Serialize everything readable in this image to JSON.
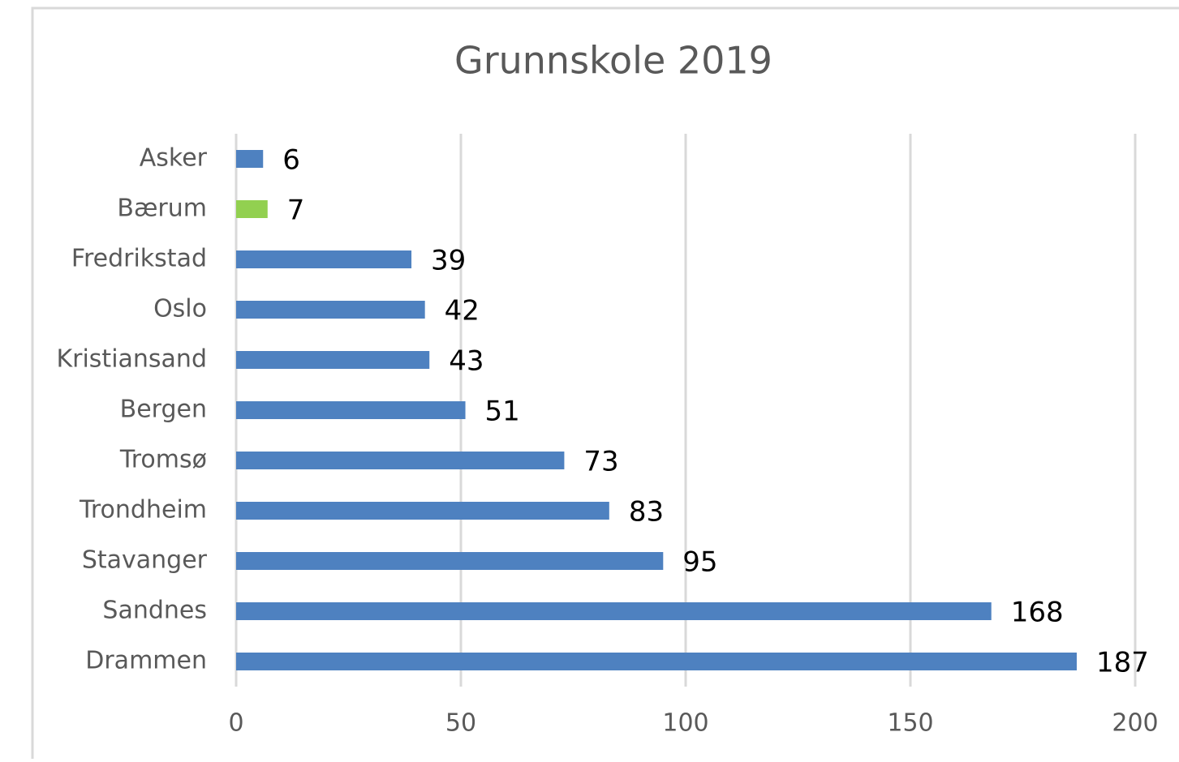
{
  "chart_data": {
    "type": "barh",
    "title": "Grunnskole 2019",
    "categories": [
      "Asker",
      "Bærum",
      "Fredrikstad",
      "Oslo",
      "Kristiansand",
      "Bergen",
      "Tromsø",
      "Trondheim",
      "Stavanger",
      "Sandnes",
      "Drammen"
    ],
    "values": [
      6,
      7,
      39,
      42,
      43,
      51,
      73,
      83,
      95,
      168,
      187
    ],
    "colors": [
      "#4e81c0",
      "#92d050",
      "#4e81c0",
      "#4e81c0",
      "#4e81c0",
      "#4e81c0",
      "#4e81c0",
      "#4e81c0",
      "#4e81c0",
      "#4e81c0",
      "#4e81c0"
    ],
    "xlim": [
      0,
      200
    ],
    "xticks": [
      0,
      50,
      100,
      150,
      200
    ],
    "grid": true
  }
}
